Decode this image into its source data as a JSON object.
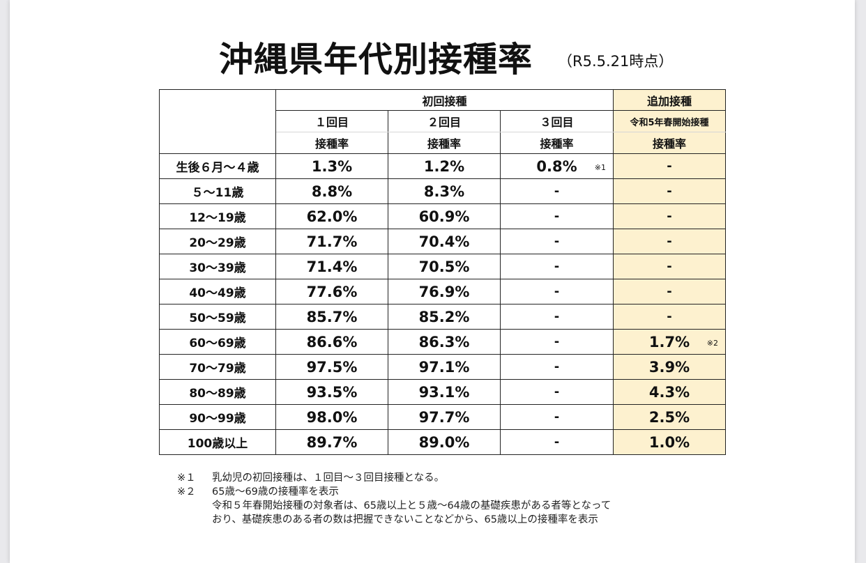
{
  "title": "沖縄県年代別接種率",
  "as_of": "（R5.5.21時点）",
  "table": {
    "group_initial": "初回接種",
    "group_booster": "追加接種",
    "dose_headers": [
      "１回目",
      "２回目",
      "３回目"
    ],
    "booster_sub": "令和5年春開始接種",
    "rate_label": "接種率",
    "rows": [
      {
        "age": "生後６月～４歳",
        "d1": "1.3%",
        "d2": "1.2%",
        "d3": "0.8%",
        "d3_note": "※1",
        "booster": "-",
        "booster_note": ""
      },
      {
        "age": "５～11歳",
        "d1": "8.8%",
        "d2": "8.3%",
        "d3": "-",
        "d3_note": "",
        "booster": "-",
        "booster_note": ""
      },
      {
        "age": "12～19歳",
        "d1": "62.0%",
        "d2": "60.9%",
        "d3": "-",
        "d3_note": "",
        "booster": "-",
        "booster_note": ""
      },
      {
        "age": "20～29歳",
        "d1": "71.7%",
        "d2": "70.4%",
        "d3": "-",
        "d3_note": "",
        "booster": "-",
        "booster_note": ""
      },
      {
        "age": "30～39歳",
        "d1": "71.4%",
        "d2": "70.5%",
        "d3": "-",
        "d3_note": "",
        "booster": "-",
        "booster_note": ""
      },
      {
        "age": "40～49歳",
        "d1": "77.6%",
        "d2": "76.9%",
        "d3": "-",
        "d3_note": "",
        "booster": "-",
        "booster_note": ""
      },
      {
        "age": "50～59歳",
        "d1": "85.7%",
        "d2": "85.2%",
        "d3": "-",
        "d3_note": "",
        "booster": "-",
        "booster_note": ""
      },
      {
        "age": "60～69歳",
        "d1": "86.6%",
        "d2": "86.3%",
        "d3": "-",
        "d3_note": "",
        "booster": "1.7%",
        "booster_note": "※2"
      },
      {
        "age": "70～79歳",
        "d1": "97.5%",
        "d2": "97.1%",
        "d3": "-",
        "d3_note": "",
        "booster": "3.9%",
        "booster_note": ""
      },
      {
        "age": "80～89歳",
        "d1": "93.5%",
        "d2": "93.1%",
        "d3": "-",
        "d3_note": "",
        "booster": "4.3%",
        "booster_note": ""
      },
      {
        "age": "90～99歳",
        "d1": "98.0%",
        "d2": "97.7%",
        "d3": "-",
        "d3_note": "",
        "booster": "2.5%",
        "booster_note": ""
      },
      {
        "age": "100歳以上",
        "d1": "89.7%",
        "d2": "89.0%",
        "d3": "-",
        "d3_note": "",
        "booster": "1.0%",
        "booster_note": ""
      }
    ]
  },
  "notes": [
    {
      "key": "※１",
      "lines": [
        "乳幼児の初回接種は、１回目～３回目接種となる。"
      ]
    },
    {
      "key": "※２",
      "lines": [
        "65歳～69歳の接種率を表示",
        "令和５年春開始接種の対象者は、65歳以上と５歳～64歳の基礎疾患がある者等となって",
        "おり、基礎疾患のある者の数は把握できないことなどから、65歳以上の接種率を表示"
      ]
    }
  ],
  "colors": {
    "booster_bg": "#fdf1cf",
    "border": "#222222"
  }
}
